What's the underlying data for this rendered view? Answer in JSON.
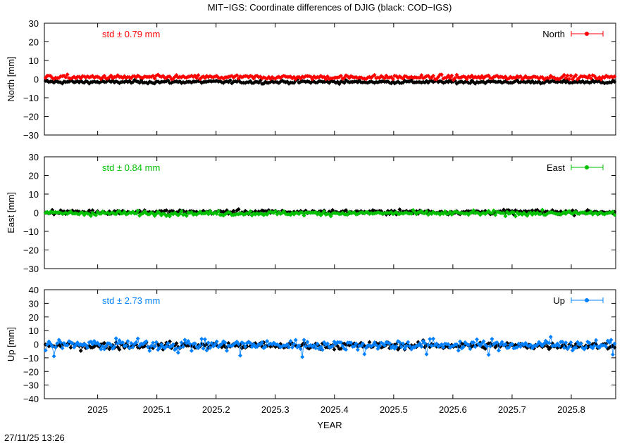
{
  "title": "MIT−IGS: Coordinate differences of DJIG (black: COD−IGS)",
  "timestamp": "27/11/25 13:26",
  "chart_data": [
    {
      "type": "scatter",
      "ylabel": "North [mm]",
      "ylim": [
        -30,
        30
      ],
      "yticks": [
        30,
        20,
        10,
        0,
        -10,
        -20,
        -30
      ],
      "ytick_labels": [
        "30",
        "20",
        "10",
        "0",
        "−10",
        "−20",
        "−30"
      ],
      "xlim": [
        2024.91,
        2025.875
      ],
      "std_label": "std ± 0.79 mm",
      "legend": "North",
      "legend_position": "top-right",
      "series": [
        {
          "name": "MIT−IGS",
          "color": "#ff0000",
          "mean": 1.0,
          "std": 0.79
        },
        {
          "name": "COD−IGS",
          "color": "#000000",
          "mean": -1.5,
          "std": 0.6
        }
      ]
    },
    {
      "type": "scatter",
      "ylabel": "East [mm]",
      "ylim": [
        -30,
        30
      ],
      "yticks": [
        30,
        20,
        10,
        0,
        -10,
        -20,
        -30
      ],
      "ytick_labels": [
        "30",
        "20",
        "10",
        "0",
        "−10",
        "−20",
        "−30"
      ],
      "xlim": [
        2024.91,
        2025.875
      ],
      "std_label": "std ± 0.84 mm",
      "legend": "East",
      "legend_position": "top-right",
      "series": [
        {
          "name": "MIT−IGS",
          "color": "#00c000",
          "mean": -0.3,
          "std": 0.84
        },
        {
          "name": "COD−IGS",
          "color": "#000000",
          "mean": 0.4,
          "std": 0.8
        }
      ]
    },
    {
      "type": "scatter",
      "ylabel": "Up [mm]",
      "ylim": [
        -40,
        40
      ],
      "yticks": [
        40,
        30,
        20,
        10,
        0,
        -10,
        -20,
        -30,
        -40
      ],
      "ytick_labels": [
        "40",
        "30",
        "20",
        "10",
        "0",
        "−10",
        "−20",
        "−30",
        "−40"
      ],
      "xlim": [
        2024.91,
        2025.875
      ],
      "std_label": "std ± 2.73 mm",
      "legend": "Up",
      "legend_position": "top-right",
      "series": [
        {
          "name": "MIT−IGS",
          "color": "#0080ff",
          "mean": -0.5,
          "std": 2.73
        },
        {
          "name": "COD−IGS",
          "color": "#000000",
          "mean": -1.0,
          "std": 1.8
        }
      ]
    }
  ],
  "x_axis": {
    "label": "YEAR",
    "ticks": [
      2025,
      2025.1,
      2025.2,
      2025.3,
      2025.4,
      2025.5,
      2025.6,
      2025.7,
      2025.8
    ],
    "tick_labels": [
      "2025",
      "2025.1",
      "2025.2",
      "2025.3",
      "2025.4",
      "2025.5",
      "2025.6",
      "2025.7",
      "2025.8"
    ]
  }
}
